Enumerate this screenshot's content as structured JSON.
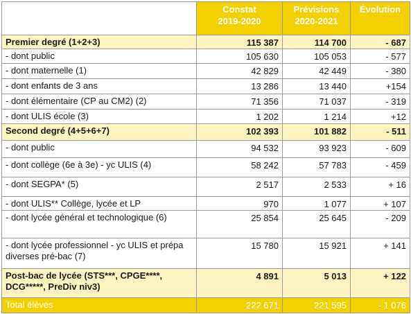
{
  "table": {
    "header": [
      "Constat\n2019-2020",
      "Prévisions\n2020-2021",
      "Évolution"
    ],
    "rows": [
      {
        "label": "Premier degré (1+2+3)",
        "values": [
          "115 387",
          "114 700",
          "- 687"
        ],
        "style": "subtotal"
      },
      {
        "label": "- dont public",
        "values": [
          "105 630",
          "105 053",
          "- 577"
        ]
      },
      {
        "label": "- dont maternelle (1)",
        "values": [
          "42 829",
          "42 449",
          "- 380"
        ]
      },
      {
        "label": "- dont enfants de 3 ans",
        "values": [
          "13 286",
          "13 440",
          "+154"
        ]
      },
      {
        "label": "- dont élémentaire (CP au CM2) (2)",
        "values": [
          "71 356",
          "71 037",
          "- 319"
        ]
      },
      {
        "label": "- dont ULIS école (3)",
        "values": [
          "1 202",
          "1 214",
          "+12"
        ]
      },
      {
        "label": "Second degré (4+5+6+7)",
        "values": [
          "102 393",
          "101 882",
          "- 511"
        ],
        "style": "subtotal"
      },
      {
        "label": "- dont public",
        "values": [
          "94 532",
          "93 923",
          "- 609"
        ]
      },
      {
        "label": "- dont collège (6e à 3e) - yc ULIS (4)",
        "values": [
          "58 242",
          "57 783",
          "- 459"
        ]
      },
      {
        "label": "- dont SEGPA* (5)",
        "values": [
          "2 517",
          "2 533",
          "+ 16"
        ]
      },
      {
        "label": "- dont ULIS** Collège, lycée et LP",
        "values": [
          "970",
          "1 077",
          "+ 107"
        ]
      },
      {
        "label": "- dont lycée général et technologique (6)",
        "values": [
          "25 854",
          "25 645",
          "- 209"
        ]
      },
      {
        "label": "- dont lycée professionnel - yc ULIS et prépa diverses pré-bac (7)",
        "values": [
          "15 780",
          "15 921",
          "+ 141"
        ]
      },
      {
        "label": "Post-bac de lycée (STS***, CPGE****, DCG*****, PreDiv niv3)",
        "values": [
          "4 891",
          "5 013",
          "+ 122"
        ],
        "style": "subtotal"
      },
      {
        "label": "Total élèves",
        "values": [
          "222 671",
          "221 595",
          "- 1 076"
        ],
        "style": "total"
      }
    ]
  }
}
